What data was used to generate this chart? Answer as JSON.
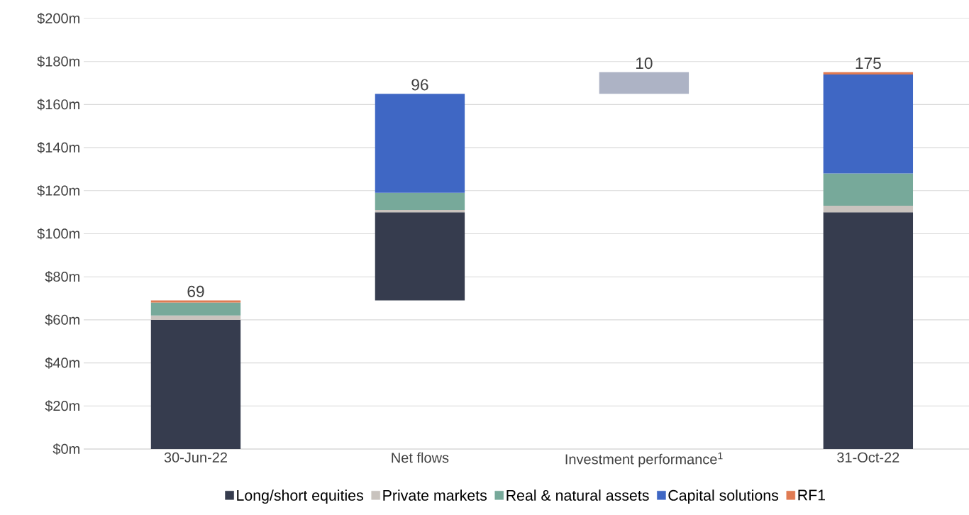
{
  "chart_data": {
    "type": "bar",
    "categories": [
      "30-Jun-22",
      "Net flows",
      "Investment performance$^{1}$",
      "31-Oct-22"
    ],
    "series": [
      {
        "name": "Long/short equities",
        "color": "#363c4e",
        "values": [
          60,
          41,
          null,
          110
        ],
        "base": [
          0,
          69,
          null,
          0
        ]
      },
      {
        "name": "Private markets",
        "color": "#c9c3be",
        "values": [
          2,
          1,
          null,
          3
        ],
        "base": [
          60,
          110,
          null,
          110
        ]
      },
      {
        "name": "Real & natural assets",
        "color": "#77a99a",
        "values": [
          6,
          8,
          null,
          15
        ],
        "base": [
          62,
          111,
          null,
          113
        ]
      },
      {
        "name": "Capital solutions",
        "color": "#3f67c4",
        "values": [
          null,
          46,
          null,
          46
        ],
        "base": [
          null,
          119,
          null,
          128
        ]
      },
      {
        "name": "RF1",
        "color": "#e07b53",
        "values": [
          1,
          null,
          null,
          1
        ],
        "base": [
          68,
          null,
          null,
          174
        ]
      },
      {
        "color": "#adb3c5",
        "values": [
          null,
          null,
          10,
          null
        ],
        "base": [
          null,
          null,
          165,
          null
        ]
      }
    ],
    "totals": [
      "69",
      "96",
      "10",
      "175"
    ],
    "ylim": [
      0,
      200
    ],
    "yticks": [
      {
        "value": 0,
        "label": "$0m"
      },
      {
        "value": 20,
        "label": "$20m"
      },
      {
        "value": 40,
        "label": "$40m"
      },
      {
        "value": 60,
        "label": "$60m"
      },
      {
        "value": 80,
        "label": "$80m"
      },
      {
        "value": 100,
        "label": "$100m"
      },
      {
        "value": 120,
        "label": "$120m"
      },
      {
        "value": 140,
        "label": "$140m"
      },
      {
        "value": 160,
        "label": "$160m"
      },
      {
        "value": 180,
        "label": "$180m"
      },
      {
        "value": 200,
        "label": "$200m"
      }
    ],
    "grid": "y",
    "legend": "bottom"
  }
}
